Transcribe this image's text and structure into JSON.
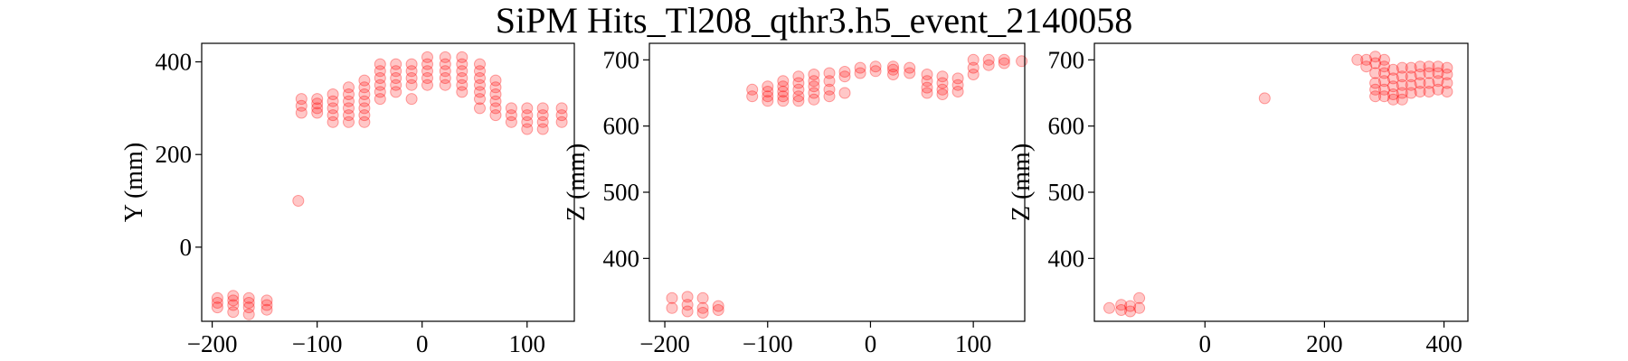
{
  "figure": {
    "title": "SiPM Hits_Tl208_qthr3.h5_event_2140058"
  },
  "colors": {
    "marker": "#ff0000",
    "axes": "#000000",
    "background": "#ffffff"
  },
  "chart_data": [
    {
      "type": "scatter",
      "name": "panel-xy",
      "xlabel": "",
      "ylabel": "Y (mm)",
      "xlim": [
        -210,
        145
      ],
      "ylim": [
        -160,
        440
      ],
      "xticks": [
        -200,
        -100,
        0,
        100
      ],
      "yticks": [
        0,
        200,
        400
      ],
      "grid": false,
      "marker": {
        "shape": "circle",
        "color": "#ff0000"
      },
      "points": [
        [
          -195,
          -110
        ],
        [
          -195,
          -120
        ],
        [
          -195,
          -130
        ],
        [
          -180,
          -105
        ],
        [
          -180,
          -115
        ],
        [
          -180,
          -125
        ],
        [
          -180,
          -140
        ],
        [
          -165,
          -110
        ],
        [
          -165,
          -120
        ],
        [
          -165,
          -130
        ],
        [
          -165,
          -145
        ],
        [
          -148,
          -115
        ],
        [
          -148,
          -125
        ],
        [
          -148,
          -135
        ],
        [
          -118,
          100
        ],
        [
          -115,
          320
        ],
        [
          -115,
          305
        ],
        [
          -115,
          290
        ],
        [
          -100,
          320
        ],
        [
          -100,
          310
        ],
        [
          -100,
          300
        ],
        [
          -100,
          290
        ],
        [
          -85,
          330
        ],
        [
          -85,
          315
        ],
        [
          -85,
          300
        ],
        [
          -85,
          285
        ],
        [
          -85,
          270
        ],
        [
          -70,
          345
        ],
        [
          -70,
          330
        ],
        [
          -70,
          315
        ],
        [
          -70,
          300
        ],
        [
          -70,
          285
        ],
        [
          -70,
          270
        ],
        [
          -55,
          360
        ],
        [
          -55,
          345
        ],
        [
          -55,
          330
        ],
        [
          -55,
          315
        ],
        [
          -55,
          300
        ],
        [
          -55,
          285
        ],
        [
          -55,
          270
        ],
        [
          -40,
          395
        ],
        [
          -40,
          380
        ],
        [
          -40,
          365
        ],
        [
          -40,
          350
        ],
        [
          -40,
          335
        ],
        [
          -40,
          320
        ],
        [
          -25,
          395
        ],
        [
          -25,
          380
        ],
        [
          -25,
          365
        ],
        [
          -25,
          350
        ],
        [
          -25,
          335
        ],
        [
          -10,
          395
        ],
        [
          -10,
          380
        ],
        [
          -10,
          365
        ],
        [
          -10,
          350
        ],
        [
          -10,
          320
        ],
        [
          5,
          410
        ],
        [
          5,
          395
        ],
        [
          5,
          380
        ],
        [
          5,
          365
        ],
        [
          5,
          350
        ],
        [
          22,
          410
        ],
        [
          22,
          395
        ],
        [
          22,
          380
        ],
        [
          22,
          365
        ],
        [
          22,
          350
        ],
        [
          38,
          410
        ],
        [
          38,
          395
        ],
        [
          38,
          380
        ],
        [
          38,
          365
        ],
        [
          38,
          350
        ],
        [
          38,
          335
        ],
        [
          55,
          395
        ],
        [
          55,
          380
        ],
        [
          55,
          365
        ],
        [
          55,
          350
        ],
        [
          55,
          335
        ],
        [
          55,
          320
        ],
        [
          55,
          300
        ],
        [
          70,
          360
        ],
        [
          70,
          345
        ],
        [
          70,
          330
        ],
        [
          70,
          315
        ],
        [
          70,
          300
        ],
        [
          70,
          285
        ],
        [
          85,
          300
        ],
        [
          85,
          285
        ],
        [
          85,
          270
        ],
        [
          100,
          300
        ],
        [
          100,
          285
        ],
        [
          100,
          270
        ],
        [
          100,
          255
        ],
        [
          115,
          300
        ],
        [
          115,
          285
        ],
        [
          115,
          270
        ],
        [
          115,
          255
        ],
        [
          133,
          300
        ],
        [
          133,
          285
        ],
        [
          133,
          270
        ]
      ]
    },
    {
      "type": "scatter",
      "name": "panel-xz",
      "xlabel": "",
      "ylabel": "Z (mm)",
      "xlim": [
        -215,
        150
      ],
      "ylim": [
        305,
        725
      ],
      "xticks": [
        -200,
        -100,
        0,
        100
      ],
      "yticks": [
        400,
        500,
        600,
        700
      ],
      "grid": false,
      "marker": {
        "shape": "circle",
        "color": "#ff0000"
      },
      "points": [
        [
          -193,
          340
        ],
        [
          -193,
          325
        ],
        [
          -178,
          342
        ],
        [
          -178,
          330
        ],
        [
          -178,
          320
        ],
        [
          -163,
          340
        ],
        [
          -163,
          325
        ],
        [
          -163,
          318
        ],
        [
          -148,
          328
        ],
        [
          -148,
          322
        ],
        [
          -115,
          655
        ],
        [
          -115,
          645
        ],
        [
          -100,
          660
        ],
        [
          -100,
          652
        ],
        [
          -100,
          645
        ],
        [
          -100,
          638
        ],
        [
          -85,
          668
        ],
        [
          -85,
          660
        ],
        [
          -85,
          652
        ],
        [
          -85,
          645
        ],
        [
          -85,
          638
        ],
        [
          -70,
          675
        ],
        [
          -70,
          665
        ],
        [
          -70,
          655
        ],
        [
          -70,
          645
        ],
        [
          -70,
          638
        ],
        [
          -55,
          678
        ],
        [
          -55,
          668
        ],
        [
          -55,
          660
        ],
        [
          -55,
          650
        ],
        [
          -55,
          640
        ],
        [
          -40,
          680
        ],
        [
          -40,
          668
        ],
        [
          -40,
          655
        ],
        [
          -40,
          645
        ],
        [
          -25,
          682
        ],
        [
          -25,
          675
        ],
        [
          -25,
          650
        ],
        [
          -10,
          688
        ],
        [
          -10,
          680
        ],
        [
          5,
          690
        ],
        [
          5,
          683
        ],
        [
          22,
          690
        ],
        [
          22,
          685
        ],
        [
          22,
          678
        ],
        [
          38,
          688
        ],
        [
          38,
          680
        ],
        [
          55,
          678
        ],
        [
          55,
          668
        ],
        [
          55,
          658
        ],
        [
          55,
          650
        ],
        [
          70,
          675
        ],
        [
          70,
          665
        ],
        [
          70,
          655
        ],
        [
          70,
          648
        ],
        [
          85,
          672
        ],
        [
          85,
          662
        ],
        [
          85,
          652
        ],
        [
          100,
          700
        ],
        [
          100,
          688
        ],
        [
          100,
          678
        ],
        [
          115,
          700
        ],
        [
          115,
          692
        ],
        [
          130,
          700
        ],
        [
          130,
          695
        ],
        [
          147,
          698
        ]
      ]
    },
    {
      "type": "scatter",
      "name": "panel-yz",
      "xlabel": "",
      "ylabel": "Z (mm)",
      "xlim": [
        -185,
        440
      ],
      "ylim": [
        305,
        725
      ],
      "xticks": [
        0,
        200,
        400
      ],
      "yticks": [
        400,
        500,
        600,
        700
      ],
      "grid": false,
      "marker": {
        "shape": "circle",
        "color": "#ff0000"
      },
      "points": [
        [
          -160,
          325
        ],
        [
          -140,
          330
        ],
        [
          -140,
          322
        ],
        [
          -125,
          328
        ],
        [
          -125,
          320
        ],
        [
          -110,
          340
        ],
        [
          -110,
          325
        ],
        [
          100,
          642
        ],
        [
          255,
          700
        ],
        [
          270,
          700
        ],
        [
          270,
          690
        ],
        [
          285,
          705
        ],
        [
          285,
          695
        ],
        [
          285,
          680
        ],
        [
          285,
          665
        ],
        [
          285,
          655
        ],
        [
          285,
          645
        ],
        [
          300,
          700
        ],
        [
          300,
          690
        ],
        [
          300,
          680
        ],
        [
          300,
          668
        ],
        [
          300,
          655
        ],
        [
          300,
          645
        ],
        [
          315,
          685
        ],
        [
          315,
          672
        ],
        [
          315,
          660
        ],
        [
          315,
          648
        ],
        [
          315,
          640
        ],
        [
          330,
          688
        ],
        [
          330,
          675
        ],
        [
          330,
          662
        ],
        [
          330,
          650
        ],
        [
          330,
          640
        ],
        [
          345,
          688
        ],
        [
          345,
          675
        ],
        [
          345,
          662
        ],
        [
          345,
          650
        ],
        [
          360,
          690
        ],
        [
          360,
          678
        ],
        [
          360,
          665
        ],
        [
          360,
          652
        ],
        [
          375,
          690
        ],
        [
          375,
          680
        ],
        [
          375,
          665
        ],
        [
          375,
          652
        ],
        [
          390,
          690
        ],
        [
          390,
          680
        ],
        [
          390,
          668
        ],
        [
          390,
          655
        ],
        [
          405,
          688
        ],
        [
          405,
          678
        ],
        [
          405,
          665
        ],
        [
          405,
          652
        ]
      ]
    }
  ]
}
